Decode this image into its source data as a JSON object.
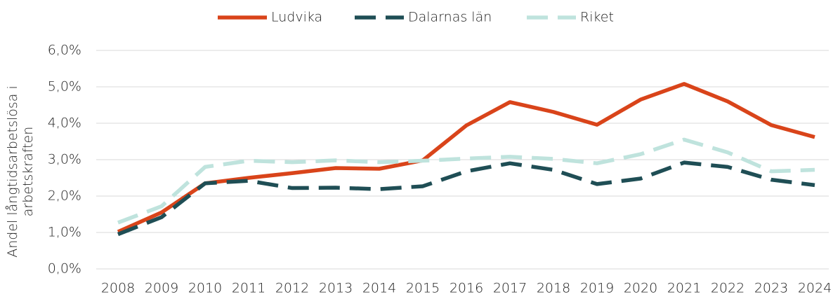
{
  "chart_data": {
    "type": "line",
    "y_label": [
      "Andel långtidsarbetslösa i",
      "arbetskraften"
    ],
    "categories": [
      "2008",
      "2009",
      "2010",
      "2011",
      "2012",
      "2013",
      "2014",
      "2015",
      "2016",
      "2017",
      "2018",
      "2019",
      "2020",
      "2021",
      "2022",
      "2023",
      "2024"
    ],
    "series": [
      {
        "name": "Ludvika",
        "color": "#d9441a",
        "dash": "solid",
        "values": [
          1.02,
          1.55,
          2.35,
          2.5,
          2.63,
          2.77,
          2.75,
          2.98,
          3.94,
          4.58,
          4.31,
          3.96,
          4.65,
          5.08,
          4.6,
          3.95,
          3.62
        ]
      },
      {
        "name": "Dalarnas län",
        "color": "#1f4e55",
        "dash": "dashed",
        "values": [
          0.95,
          1.42,
          2.35,
          2.42,
          2.22,
          2.23,
          2.19,
          2.27,
          2.68,
          2.9,
          2.72,
          2.33,
          2.48,
          2.92,
          2.8,
          2.45,
          2.3
        ]
      },
      {
        "name": "Riket",
        "color": "#bfe3dd",
        "dash": "dashed",
        "values": [
          1.27,
          1.72,
          2.8,
          2.97,
          2.93,
          2.98,
          2.93,
          2.97,
          3.03,
          3.08,
          3.02,
          2.9,
          3.15,
          3.55,
          3.2,
          2.68,
          2.72
        ]
      }
    ],
    "ylim": [
      0,
      6
    ],
    "yticks": [
      {
        "value": 0,
        "label": "0,0%"
      },
      {
        "value": 1,
        "label": "1,0%"
      },
      {
        "value": 2,
        "label": "2,0%"
      },
      {
        "value": 3,
        "label": "3,0%"
      },
      {
        "value": 4,
        "label": "4,0%"
      },
      {
        "value": 5,
        "label": "5,0%"
      },
      {
        "value": 6,
        "label": "6,0%"
      }
    ],
    "grid": true,
    "legend": "top"
  }
}
